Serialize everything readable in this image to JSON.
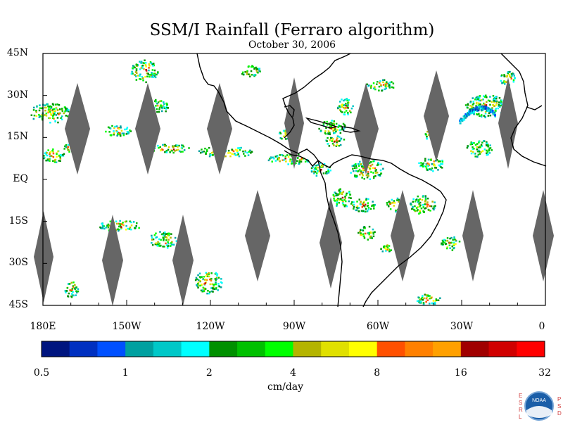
{
  "title": "SSM/I Rainfall (Ferraro algorithm)",
  "subtitle": "October 30, 2006",
  "lat_labels": [
    "45N",
    "30N",
    "15N",
    "EQ",
    "15S",
    "30S",
    "45S"
  ],
  "lat_values": [
    45,
    30,
    15,
    0,
    -15,
    -30,
    -45
  ],
  "lon_labels": [
    "180E",
    "150W",
    "120W",
    "90W",
    "60W",
    "30W",
    "0"
  ],
  "lon_values": [
    -180,
    -150,
    -120,
    -90,
    -60,
    -30,
    0
  ],
  "colorbar": {
    "colors": [
      "#00157f",
      "#0030c0",
      "#0050ff",
      "#00a0a0",
      "#00c8c8",
      "#00ffff",
      "#009000",
      "#00c000",
      "#00ff00",
      "#b4b400",
      "#e0e000",
      "#ffff00",
      "#ff5000",
      "#ff8000",
      "#ffa000",
      "#a00000",
      "#d00000",
      "#ff0000"
    ],
    "tick_labels": [
      "0.5",
      "1",
      "2",
      "4",
      "8",
      "16",
      "32"
    ],
    "tick_values": [
      0.5,
      1,
      2,
      4,
      8,
      16,
      32
    ],
    "units": "cm/day"
  },
  "logo": {
    "left_letters": [
      "E",
      "S",
      "R",
      "L"
    ],
    "right_letters": [
      "P",
      "S",
      "D"
    ],
    "center_text": "NOAA"
  }
}
